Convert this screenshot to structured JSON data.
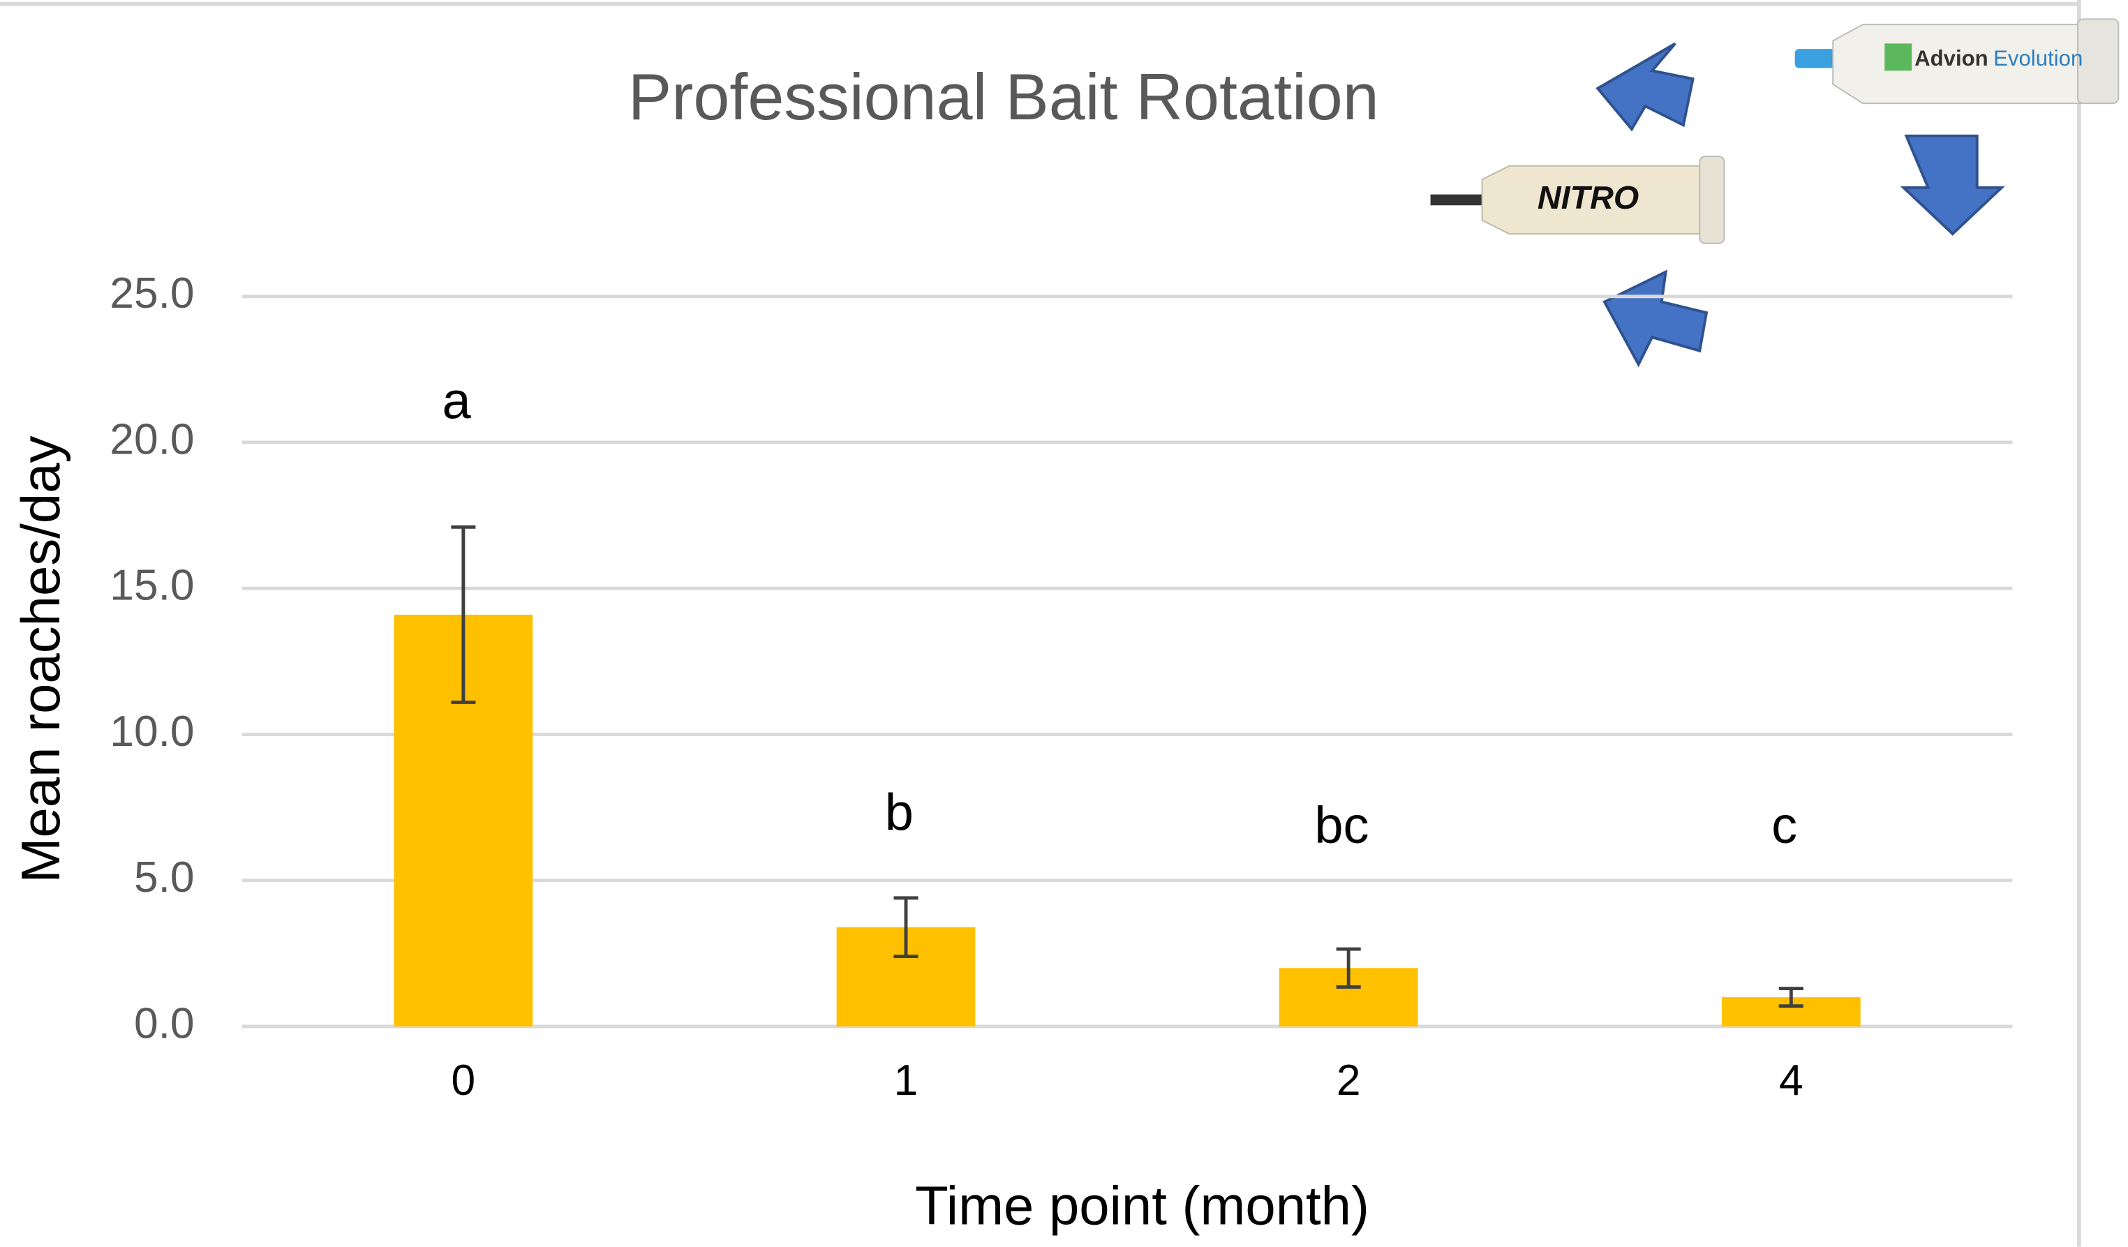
{
  "chart_data": {
    "type": "bar",
    "title": "Professional Bait Rotation",
    "x_label": "Time point (month)",
    "y_label": "Mean roaches/day",
    "categories": [
      "0",
      "1",
      "2",
      "4"
    ],
    "values": [
      14.1,
      3.4,
      2.0,
      1.0
    ],
    "errors": [
      3.0,
      1.0,
      0.65,
      0.3
    ],
    "annotations": [
      "a",
      "b",
      "bc",
      "c"
    ],
    "color": "#ffc000",
    "ylim": [
      0,
      25
    ],
    "yticks": [
      {
        "value": 0,
        "label": "0.0"
      },
      {
        "value": 5,
        "label": "5.0"
      },
      {
        "value": 10,
        "label": "10.0"
      },
      {
        "value": 15,
        "label": "15.0"
      },
      {
        "value": 20,
        "label": "20.0"
      },
      {
        "value": 25,
        "label": "25.0"
      }
    ],
    "grid": true
  },
  "illustration": {
    "nitro_label": "NITRO",
    "advion_label": "Advion",
    "evolution_label": "Evolution"
  }
}
